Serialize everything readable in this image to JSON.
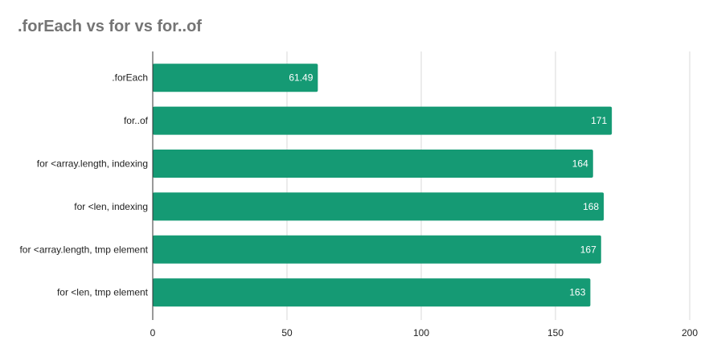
{
  "chart_data": {
    "type": "bar",
    "orientation": "horizontal",
    "title": ".forEach vs for vs for..of",
    "categories": [
      ".forEach",
      "for..of",
      "for <array.length, indexing",
      "for <len, indexing",
      "for <array.length, tmp element",
      "for <len, tmp element"
    ],
    "values": [
      61.49,
      171,
      164,
      168,
      167,
      163
    ],
    "data_labels": [
      "61.49",
      "171",
      "164",
      "168",
      "167",
      "163"
    ],
    "xlim": [
      0,
      200
    ],
    "xticks": [
      "0",
      "50",
      "100",
      "150",
      "200"
    ],
    "xlabel": "",
    "ylabel": "",
    "grid": true,
    "legend": "none",
    "colors": {
      "bar": "#159a74",
      "grid": "#d9d9d9",
      "axis": "#333333",
      "title": "#757575"
    }
  }
}
